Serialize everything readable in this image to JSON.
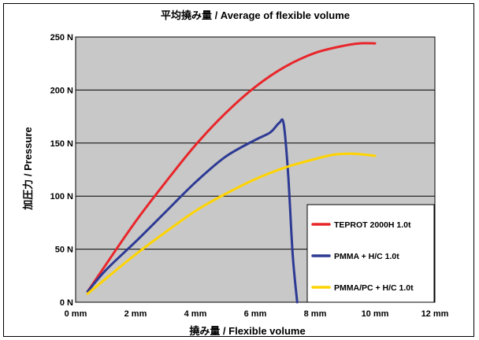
{
  "chart_data": {
    "type": "line",
    "title": "平均撓み量 / Average of flexible volume",
    "xlabel": "撓み量 / Flexible volume",
    "ylabel": "加圧力 / Pressure",
    "xlim": [
      0,
      12
    ],
    "ylim": [
      0,
      250
    ],
    "x_ticks": [
      {
        "value": 0,
        "label": "0 mm"
      },
      {
        "value": 2,
        "label": "2 mm"
      },
      {
        "value": 4,
        "label": "4 mm"
      },
      {
        "value": 6,
        "label": "6 mm"
      },
      {
        "value": 8,
        "label": "8 mm"
      },
      {
        "value": 10,
        "label": "10 mm"
      },
      {
        "value": 12,
        "label": "12 mm"
      }
    ],
    "y_ticks": [
      {
        "value": 0,
        "label": "0 N"
      },
      {
        "value": 50,
        "label": "50 N"
      },
      {
        "value": 100,
        "label": "100 N"
      },
      {
        "value": 150,
        "label": "150 N"
      },
      {
        "value": 200,
        "label": "200 N"
      },
      {
        "value": 250,
        "label": "250 N"
      }
    ],
    "grid": true,
    "plot_background": "#c8c8c8",
    "legend_position": "bottom-right",
    "series": [
      {
        "name": "TEPROT 2000H 1.0t",
        "color": "#e8262b",
        "points": [
          [
            0.4,
            10
          ],
          [
            1.0,
            35
          ],
          [
            2.0,
            76
          ],
          [
            3.0,
            113
          ],
          [
            4.0,
            148
          ],
          [
            5.0,
            178
          ],
          [
            6.0,
            203
          ],
          [
            7.0,
            222
          ],
          [
            8.0,
            235
          ],
          [
            9.0,
            242
          ],
          [
            9.5,
            244
          ],
          [
            10.0,
            244
          ]
        ]
      },
      {
        "name": "PMMA + H/C 1.0t",
        "color": "#2d3a94",
        "points": [
          [
            0.4,
            10
          ],
          [
            1.0,
            30
          ],
          [
            2.0,
            57
          ],
          [
            3.0,
            85
          ],
          [
            4.0,
            113
          ],
          [
            5.0,
            137
          ],
          [
            6.0,
            153
          ],
          [
            6.5,
            160
          ],
          [
            6.8,
            169
          ],
          [
            6.95,
            168
          ],
          [
            7.1,
            120
          ],
          [
            7.25,
            45
          ],
          [
            7.4,
            0
          ]
        ]
      },
      {
        "name": "PMMA/PC + H/C 1.0t",
        "color": "#ffd400",
        "points": [
          [
            0.4,
            8
          ],
          [
            1.0,
            22
          ],
          [
            2.0,
            45
          ],
          [
            3.0,
            66
          ],
          [
            4.0,
            86
          ],
          [
            5.0,
            102
          ],
          [
            6.0,
            116
          ],
          [
            7.0,
            127
          ],
          [
            8.0,
            135
          ],
          [
            8.6,
            139
          ],
          [
            9.2,
            140
          ],
          [
            9.7,
            139
          ],
          [
            10.0,
            138
          ]
        ]
      }
    ]
  }
}
